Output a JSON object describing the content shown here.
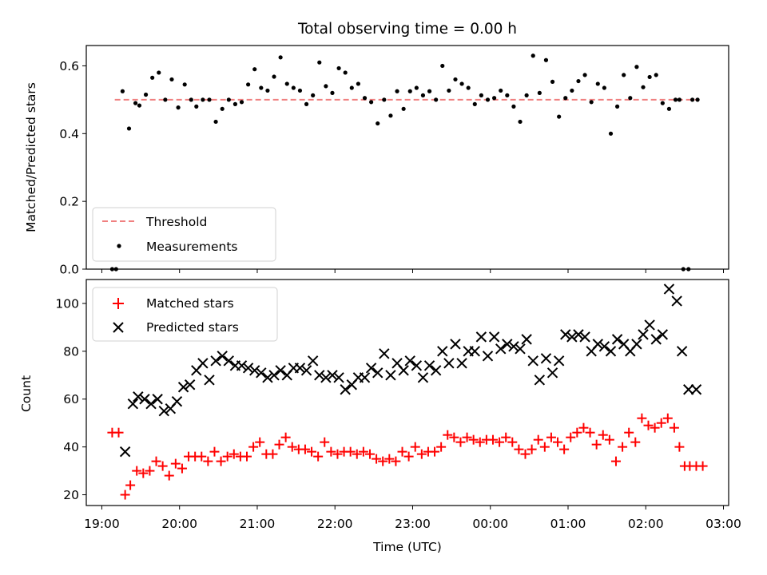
{
  "chart_data": [
    {
      "type": "scatter",
      "title": "Total observing time = 0.00 h",
      "xlabel": "",
      "ylabel": "Matched/Predicted stars",
      "ylim": [
        0,
        0.66
      ],
      "yticks": [
        0.0,
        0.2,
        0.4,
        0.6
      ],
      "ytick_labels": [
        "0.0",
        "0.2",
        "0.4",
        "0.6"
      ],
      "xlim": [
        "18:48",
        "03:04"
      ],
      "xticks": [
        "19:00",
        "20:00",
        "21:00",
        "22:00",
        "23:00",
        "00:00",
        "01:00",
        "02:00",
        "03:00"
      ],
      "legend_position": "lower-left",
      "threshold": {
        "name": "Threshold",
        "value": 0.5,
        "x_start": "19:10",
        "x_end": "02:40",
        "color": "#f08080"
      },
      "series": [
        {
          "name": "Measurements",
          "color": "#000000",
          "x": [
            "19:08",
            "19:11",
            "19:16",
            "19:21",
            "19:26",
            "19:29",
            "19:34",
            "19:39",
            "19:44",
            "19:49",
            "19:54",
            "19:59",
            "20:04",
            "20:09",
            "20:13",
            "20:18",
            "20:23",
            "20:28",
            "20:33",
            "20:38",
            "20:43",
            "20:48",
            "20:53",
            "20:58",
            "21:03",
            "21:08",
            "21:13",
            "21:18",
            "21:23",
            "21:28",
            "21:33",
            "21:38",
            "21:43",
            "21:48",
            "21:53",
            "21:58",
            "22:03",
            "22:08",
            "22:13",
            "22:18",
            "22:23",
            "22:28",
            "22:33",
            "22:38",
            "22:43",
            "22:48",
            "22:53",
            "22:58",
            "23:03",
            "23:08",
            "23:13",
            "23:18",
            "23:23",
            "23:28",
            "23:33",
            "23:38",
            "23:43",
            "23:48",
            "23:53",
            "23:58",
            "00:03",
            "00:08",
            "00:13",
            "00:18",
            "00:23",
            "00:28",
            "00:33",
            "00:38",
            "00:43",
            "00:48",
            "00:53",
            "00:58",
            "01:03",
            "01:08",
            "01:13",
            "01:18",
            "01:23",
            "01:28",
            "01:33",
            "01:38",
            "01:43",
            "01:48",
            "01:53",
            "01:58",
            "02:03",
            "02:08",
            "02:13",
            "02:18",
            "02:23",
            "02:26",
            "02:29",
            "02:33",
            "02:36",
            "02:40"
          ],
          "y": [
            0.0,
            0.0,
            0.525,
            0.415,
            0.49,
            0.483,
            0.515,
            0.565,
            0.58,
            0.5,
            0.56,
            0.477,
            0.545,
            0.5,
            0.48,
            0.5,
            0.5,
            0.435,
            0.473,
            0.5,
            0.487,
            0.493,
            0.545,
            0.59,
            0.535,
            0.527,
            0.568,
            0.625,
            0.547,
            0.535,
            0.527,
            0.487,
            0.513,
            0.61,
            0.54,
            0.52,
            0.593,
            0.58,
            0.535,
            0.547,
            0.505,
            0.493,
            0.43,
            0.5,
            0.453,
            0.525,
            0.473,
            0.525,
            0.535,
            0.513,
            0.525,
            0.5,
            0.6,
            0.527,
            0.56,
            0.547,
            0.535,
            0.487,
            0.513,
            0.5,
            0.505,
            0.527,
            0.513,
            0.48,
            0.435,
            0.513,
            0.63,
            0.52,
            0.617,
            0.553,
            0.45,
            0.505,
            0.527,
            0.555,
            0.573,
            0.493,
            0.547,
            0.535,
            0.4,
            0.48,
            0.573,
            0.505,
            0.597,
            0.537,
            0.567,
            0.573,
            0.49,
            0.473,
            0.5,
            0.5,
            0.0,
            0.0,
            0.5,
            0.5
          ]
        }
      ]
    },
    {
      "type": "scatter",
      "title": "",
      "xlabel": "Time (UTC)",
      "ylabel": "Count",
      "ylim": [
        15.5,
        110
      ],
      "yticks": [
        20,
        40,
        60,
        80,
        100
      ],
      "ytick_labels": [
        "20",
        "40",
        "60",
        "80",
        "100"
      ],
      "xlim": [
        "18:48",
        "03:04"
      ],
      "xticks": [
        "19:00",
        "20:00",
        "21:00",
        "22:00",
        "23:00",
        "00:00",
        "01:00",
        "02:00",
        "03:00"
      ],
      "xtick_labels": [
        "19:00",
        "20:00",
        "21:00",
        "22:00",
        "23:00",
        "00:00",
        "01:00",
        "02:00",
        "03:00"
      ],
      "legend_position": "upper-left",
      "series": [
        {
          "name": "Matched stars",
          "marker": "+",
          "color": "#ff0000",
          "x": [
            "19:08",
            "19:13",
            "19:18",
            "19:22",
            "19:27",
            "19:32",
            "19:37",
            "19:42",
            "19:47",
            "19:52",
            "19:57",
            "20:02",
            "20:07",
            "20:12",
            "20:17",
            "20:22",
            "20:27",
            "20:32",
            "20:37",
            "20:42",
            "20:47",
            "20:52",
            "20:57",
            "21:02",
            "21:07",
            "21:12",
            "21:17",
            "21:22",
            "21:27",
            "21:32",
            "21:37",
            "21:42",
            "21:47",
            "21:52",
            "21:57",
            "22:02",
            "22:07",
            "22:12",
            "22:17",
            "22:22",
            "22:27",
            "22:32",
            "22:37",
            "22:42",
            "22:47",
            "22:52",
            "22:57",
            "23:02",
            "23:07",
            "23:12",
            "23:17",
            "23:22",
            "23:27",
            "23:32",
            "23:37",
            "23:42",
            "23:47",
            "23:52",
            "23:57",
            "00:02",
            "00:07",
            "00:12",
            "00:17",
            "00:22",
            "00:27",
            "00:32",
            "00:37",
            "00:42",
            "00:47",
            "00:52",
            "00:57",
            "01:02",
            "01:07",
            "01:12",
            "01:17",
            "01:22",
            "01:27",
            "01:32",
            "01:37",
            "01:42",
            "01:47",
            "01:52",
            "01:57",
            "02:02",
            "02:07",
            "02:12",
            "02:17",
            "02:22",
            "02:26",
            "02:30",
            "02:34",
            "02:39",
            "02:44"
          ],
          "y": [
            46,
            46,
            20,
            24,
            30,
            29,
            30,
            34,
            32,
            28,
            33,
            31,
            36,
            36,
            36,
            34,
            38,
            34,
            36,
            37,
            36,
            36,
            40,
            42,
            37,
            37,
            41,
            44,
            40,
            39,
            39,
            38,
            36,
            42,
            38,
            37,
            38,
            38,
            37,
            38,
            37,
            35,
            34,
            35,
            34,
            38,
            36,
            40,
            37,
            38,
            38,
            40,
            45,
            44,
            42,
            44,
            43,
            42,
            43,
            43,
            42,
            44,
            42,
            39,
            37,
            39,
            43,
            40,
            44,
            42,
            39,
            44,
            46,
            48,
            46,
            41,
            45,
            43,
            34,
            40,
            46,
            42,
            52,
            49,
            48,
            50,
            52,
            48,
            40,
            32,
            32,
            32,
            32
          ]
        },
        {
          "name": "Predicted stars",
          "marker": "x",
          "color": "#000000",
          "x": [
            "19:18",
            "19:24",
            "19:28",
            "19:33",
            "19:38",
            "19:43",
            "19:48",
            "19:53",
            "19:58",
            "20:03",
            "20:08",
            "20:13",
            "20:18",
            "20:23",
            "20:28",
            "20:33",
            "20:38",
            "20:43",
            "20:48",
            "20:53",
            "20:58",
            "21:03",
            "21:08",
            "21:13",
            "21:18",
            "21:23",
            "21:28",
            "21:33",
            "21:38",
            "21:43",
            "21:48",
            "21:53",
            "21:58",
            "22:03",
            "22:08",
            "22:13",
            "22:18",
            "22:23",
            "22:28",
            "22:33",
            "22:38",
            "22:43",
            "22:48",
            "22:53",
            "22:58",
            "23:03",
            "23:08",
            "23:13",
            "23:18",
            "23:23",
            "23:28",
            "23:33",
            "23:38",
            "23:43",
            "23:48",
            "23:53",
            "23:58",
            "00:03",
            "00:08",
            "00:13",
            "00:18",
            "00:23",
            "00:28",
            "00:33",
            "00:38",
            "00:43",
            "00:48",
            "00:53",
            "00:58",
            "01:03",
            "01:08",
            "01:13",
            "01:18",
            "01:23",
            "01:28",
            "01:33",
            "01:38",
            "01:43",
            "01:48",
            "01:53",
            "01:58",
            "02:03",
            "02:08",
            "02:13",
            "02:18",
            "02:24",
            "02:28",
            "02:33",
            "02:39"
          ],
          "y": [
            38,
            58,
            61,
            60,
            58,
            60,
            55,
            56,
            59,
            65,
            66,
            72,
            75,
            68,
            76,
            78,
            76,
            74,
            74,
            73,
            72,
            71,
            69,
            70,
            72,
            70,
            73,
            73,
            72,
            76,
            70,
            69,
            70,
            69,
            64,
            66,
            69,
            69,
            73,
            71,
            79,
            70,
            75,
            72,
            76,
            74,
            69,
            74,
            72,
            80,
            75,
            83,
            75,
            80,
            80,
            86,
            78,
            86,
            81,
            83,
            82,
            81,
            85,
            76,
            68,
            77,
            71,
            76,
            87,
            86,
            87,
            86,
            80,
            83,
            82,
            80,
            85,
            83,
            80,
            83,
            87,
            91,
            85,
            87,
            106,
            101,
            80,
            64,
            64
          ]
        }
      ]
    }
  ]
}
